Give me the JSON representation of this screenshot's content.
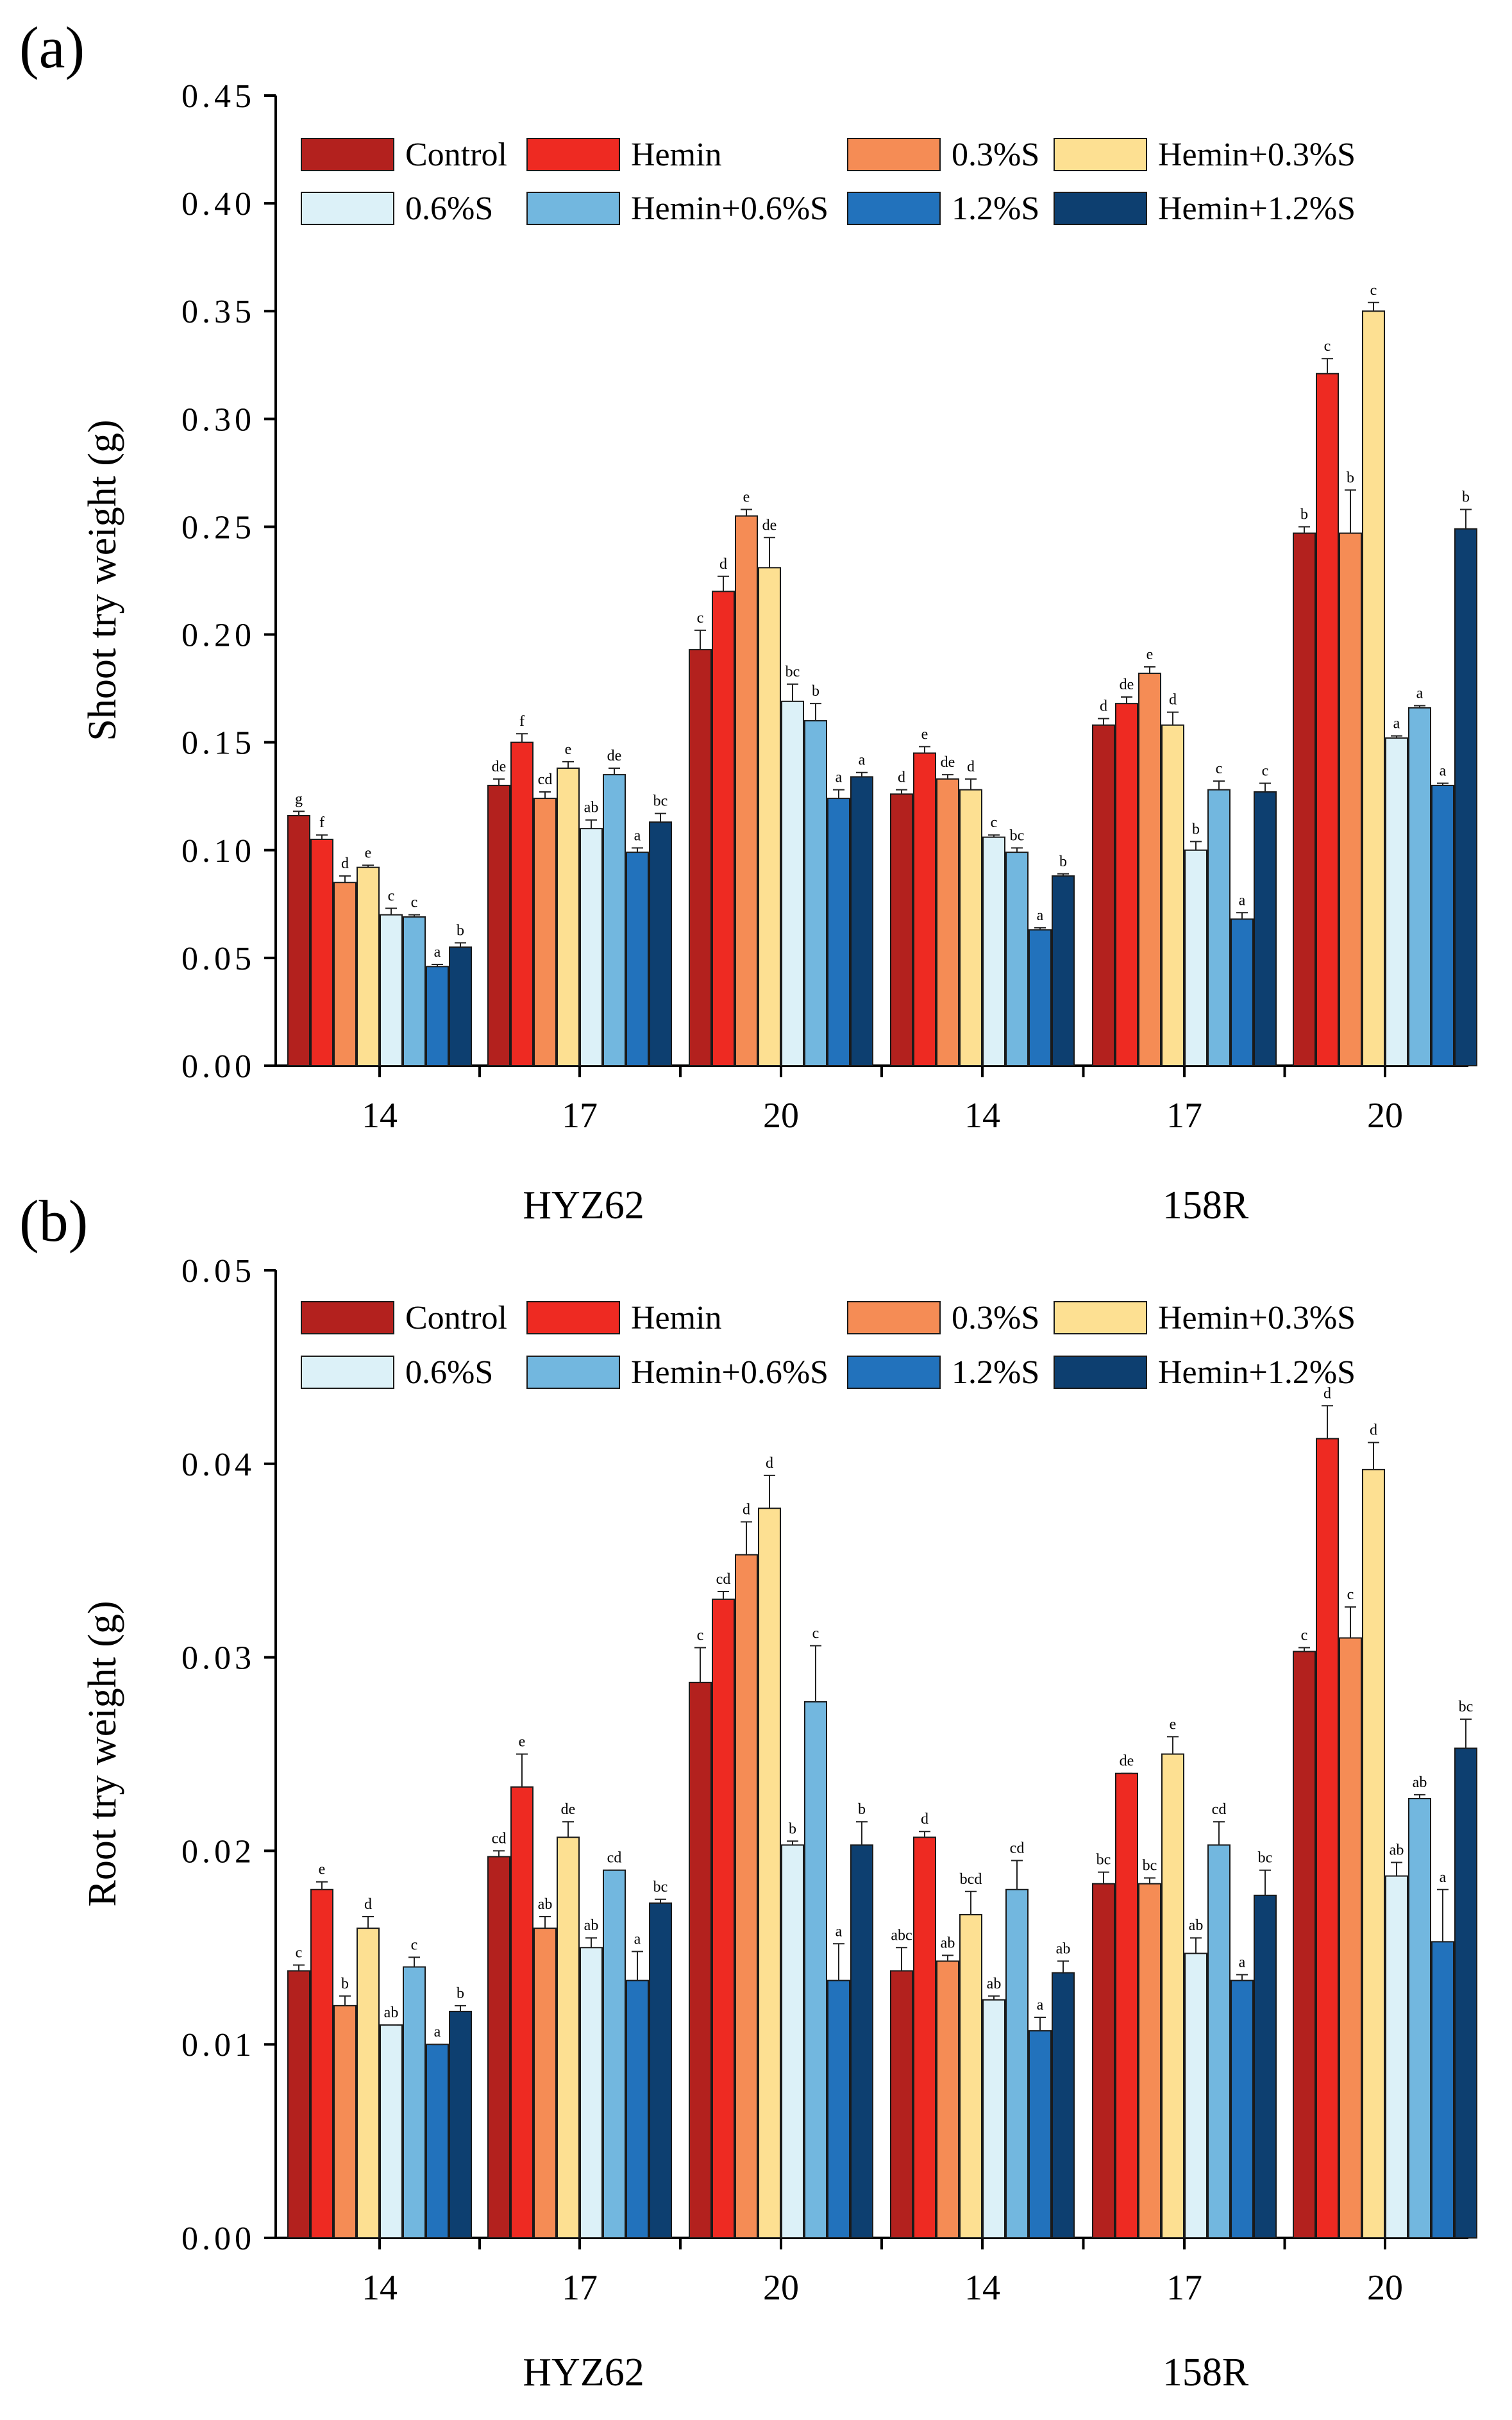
{
  "figure": {
    "series_names": [
      "Control",
      "Hemin",
      "0.3%S",
      "Hemin+0.3%S",
      "0.6%S",
      "Hemin+0.6%S",
      "1.2%S",
      "Hemin+1.2%S"
    ],
    "series_colors": [
      "#b3211e",
      "#ee2a22",
      "#f58c55",
      "#fde092",
      "#dcf1f8",
      "#72b7df",
      "#2272bc",
      "#0d3f70"
    ]
  },
  "chart_data": [
    {
      "panel_label": "(a)",
      "type": "bar",
      "ylabel": "Shoot try weight (g)",
      "ylim": [
        0,
        0.45
      ],
      "yticks": [
        "0.00",
        "0.05",
        "0.10",
        "0.15",
        "0.20",
        "0.25",
        "0.30",
        "0.35",
        "0.40",
        "0.45"
      ],
      "categories": [
        "14",
        "17",
        "20",
        "14",
        "17",
        "20"
      ],
      "groups": [
        {
          "label": "HYZ62"
        },
        {
          "label": "158R"
        }
      ],
      "legend": "top",
      "series": [
        {
          "name": "Control",
          "values": [
            0.116,
            0.13,
            0.193,
            0.126,
            0.158,
            0.247
          ],
          "errors": [
            0.002,
            0.003,
            0.009,
            0.002,
            0.003,
            0.003
          ],
          "letters": [
            "g",
            "de",
            "c",
            "d",
            "d",
            "b"
          ]
        },
        {
          "name": "Hemin",
          "values": [
            0.105,
            0.15,
            0.22,
            0.145,
            0.168,
            0.321
          ],
          "errors": [
            0.002,
            0.004,
            0.007,
            0.003,
            0.003,
            0.007
          ],
          "letters": [
            "f",
            "f",
            "d",
            "e",
            "de",
            "c"
          ]
        },
        {
          "name": "0.3%S",
          "values": [
            0.085,
            0.124,
            0.255,
            0.133,
            0.182,
            0.247
          ],
          "errors": [
            0.003,
            0.003,
            0.003,
            0.002,
            0.003,
            0.02
          ],
          "letters": [
            "d",
            "cd",
            "e",
            "de",
            "e",
            "b"
          ]
        },
        {
          "name": "Hemin+0.3%S",
          "values": [
            0.092,
            0.138,
            0.231,
            0.128,
            0.158,
            0.35
          ],
          "errors": [
            0.001,
            0.003,
            0.014,
            0.005,
            0.006,
            0.004
          ],
          "letters": [
            "e",
            "e",
            "de",
            "d",
            "d",
            "c"
          ]
        },
        {
          "name": "0.6%S",
          "values": [
            0.07,
            0.11,
            0.169,
            0.106,
            0.1,
            0.152
          ],
          "errors": [
            0.003,
            0.004,
            0.008,
            0.001,
            0.004,
            0.001
          ],
          "letters": [
            "c",
            "ab",
            "bc",
            "c",
            "b",
            "a"
          ]
        },
        {
          "name": "Hemin+0.6%S",
          "values": [
            0.069,
            0.135,
            0.16,
            0.099,
            0.128,
            0.166
          ],
          "errors": [
            0.001,
            0.003,
            0.008,
            0.002,
            0.004,
            0.001
          ],
          "letters": [
            "c",
            "de",
            "b",
            "bc",
            "c",
            "a"
          ]
        },
        {
          "name": "1.2%S",
          "values": [
            0.046,
            0.099,
            0.124,
            0.063,
            0.068,
            0.13
          ],
          "errors": [
            0.001,
            0.002,
            0.004,
            0.001,
            0.003,
            0.001
          ],
          "letters": [
            "a",
            "a",
            "a",
            "a",
            "a",
            "a"
          ]
        },
        {
          "name": "Hemin+1.2%S",
          "values": [
            0.055,
            0.113,
            0.134,
            0.088,
            0.127,
            0.249
          ],
          "errors": [
            0.002,
            0.004,
            0.002,
            0.001,
            0.004,
            0.009
          ],
          "letters": [
            "b",
            "bc",
            "a",
            "b",
            "c",
            "b"
          ]
        }
      ]
    },
    {
      "panel_label": "(b)",
      "type": "bar",
      "ylabel": "Root try weight (g)",
      "ylim": [
        0,
        0.05
      ],
      "yticks": [
        "0.00",
        "0.01",
        "0.02",
        "0.03",
        "0.04",
        "0.05"
      ],
      "categories": [
        "14",
        "17",
        "20",
        "14",
        "17",
        "20"
      ],
      "groups": [
        {
          "label": "HYZ62"
        },
        {
          "label": "158R"
        }
      ],
      "legend": "top",
      "series": [
        {
          "name": "Control",
          "values": [
            0.0138,
            0.0197,
            0.0287,
            0.0138,
            0.0183,
            0.0303
          ],
          "errors": [
            0.0003,
            0.0003,
            0.0018,
            0.0012,
            0.0006,
            0.0002
          ],
          "letters": [
            "c",
            "cd",
            "c",
            "abc",
            "bc",
            "c"
          ]
        },
        {
          "name": "Hemin",
          "values": [
            0.018,
            0.0233,
            0.033,
            0.0207,
            0.024,
            0.0413
          ],
          "errors": [
            0.0004,
            0.0017,
            0.0004,
            0.0003,
            0.0,
            0.0017
          ],
          "letters": [
            "e",
            "e",
            "cd",
            "d",
            "de",
            "d"
          ]
        },
        {
          "name": "0.3%S",
          "values": [
            0.012,
            0.016,
            0.0353,
            0.0143,
            0.0183,
            0.031
          ],
          "errors": [
            0.0005,
            0.0006,
            0.0017,
            0.0003,
            0.0003,
            0.0016
          ],
          "letters": [
            "b",
            "ab",
            "d",
            "ab",
            "bc",
            "c"
          ]
        },
        {
          "name": "Hemin+0.3%S",
          "values": [
            0.016,
            0.0207,
            0.0377,
            0.0167,
            0.025,
            0.0397
          ],
          "errors": [
            0.0006,
            0.0008,
            0.0017,
            0.0012,
            0.0009,
            0.0014
          ],
          "letters": [
            "d",
            "de",
            "d",
            "bcd",
            "e",
            "d"
          ]
        },
        {
          "name": "0.6%S",
          "values": [
            0.011,
            0.015,
            0.0203,
            0.0123,
            0.0147,
            0.0187
          ],
          "errors": [
            0.0,
            0.0005,
            0.0002,
            0.0002,
            0.0008,
            0.0007
          ],
          "letters": [
            "ab",
            "ab",
            "b",
            "ab",
            "ab",
            "ab"
          ]
        },
        {
          "name": "Hemin+0.6%S",
          "values": [
            0.014,
            0.019,
            0.0277,
            0.018,
            0.0203,
            0.0227
          ],
          "errors": [
            0.0005,
            0.0,
            0.0029,
            0.0015,
            0.0012,
            0.0002
          ],
          "letters": [
            "c",
            "cd",
            "c",
            "cd",
            "cd",
            "ab"
          ]
        },
        {
          "name": "1.2%S",
          "values": [
            0.01,
            0.0133,
            0.0133,
            0.0107,
            0.0133,
            0.0153
          ],
          "errors": [
            0.0,
            0.0015,
            0.0019,
            0.0007,
            0.0003,
            0.0027
          ],
          "letters": [
            "a",
            "a",
            "a",
            "a",
            "a",
            "a"
          ]
        },
        {
          "name": "Hemin+1.2%S",
          "values": [
            0.0117,
            0.0173,
            0.0203,
            0.0137,
            0.0177,
            0.0253
          ],
          "errors": [
            0.0003,
            0.0002,
            0.0012,
            0.0006,
            0.0013,
            0.0015
          ],
          "letters": [
            "b",
            "bc",
            "b",
            "ab",
            "bc",
            "bc"
          ]
        }
      ]
    }
  ]
}
